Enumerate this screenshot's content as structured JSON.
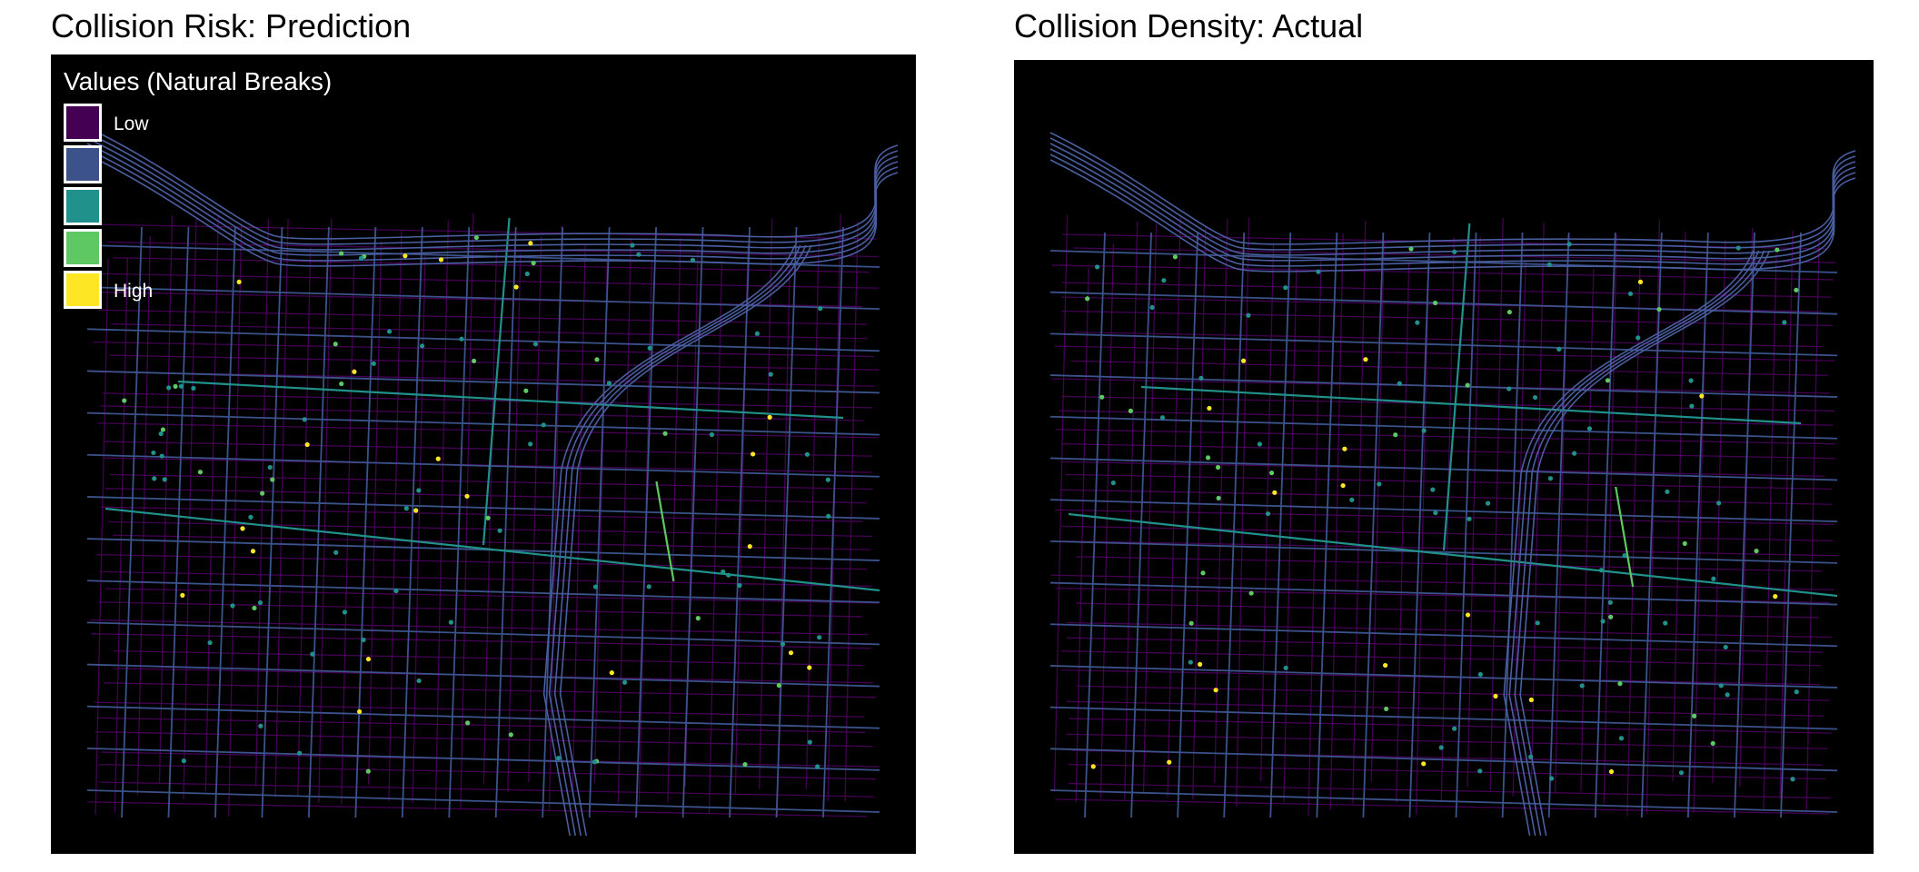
{
  "left_panel": {
    "title": "Collision Risk: Prediction"
  },
  "right_panel": {
    "title": "Collision Density: Actual"
  },
  "legend": {
    "title": "Values (Natural Breaks)",
    "classes": [
      {
        "label": "Low",
        "color": "#440154"
      },
      {
        "label": "",
        "color": "#3b528b"
      },
      {
        "label": "",
        "color": "#21918c"
      },
      {
        "label": "",
        "color": "#5ec962"
      },
      {
        "label": "High",
        "color": "#fde725"
      }
    ]
  },
  "colors": {
    "background": "#000000",
    "low_street": "#440154",
    "mid_street": "#3b528b",
    "freeway": "#4a5fa0",
    "teal": "#21918c",
    "green": "#5ec962",
    "hotspot": "#fde725"
  }
}
